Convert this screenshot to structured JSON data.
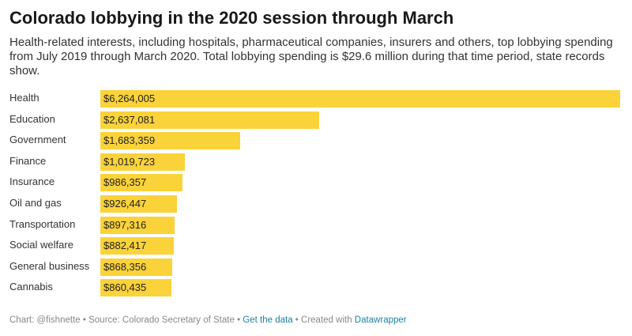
{
  "title": "Colorado lobbying in the 2020 session through March",
  "subtitle": "Health-related interests, including hospitals, pharmaceutical companies, insurers and others, top lobbying spending from July 2019 through March 2020. Total lobbying spending is $29.6 million during that time period, state records show.",
  "footer": {
    "credit": "Chart: @fishnette",
    "source": "Source: Colorado Secretary of State",
    "data_link": "Get the data",
    "created": "Created with",
    "tool_link": "Datawrapper",
    "separator": "•"
  },
  "colors": {
    "bar": "#fad23a",
    "link": "#1d81a2"
  },
  "chart_data": {
    "type": "bar",
    "orientation": "horizontal",
    "categories": [
      "Health",
      "Education",
      "Government",
      "Finance",
      "Insurance",
      "Oil and gas",
      "Transportation",
      "Social welfare",
      "General business",
      "Cannabis"
    ],
    "values": [
      6264005,
      2637081,
      1683359,
      1019723,
      986357,
      926447,
      897316,
      882417,
      868356,
      860435
    ],
    "labels": [
      "$6,264,005",
      "$2,637,081",
      "$1,683,359",
      "$1,019,723",
      "$986,357",
      "$926,447",
      "$897,316",
      "$882,417",
      "$868,356",
      "$860,435"
    ],
    "xlim": [
      0,
      6264005
    ],
    "legend": "none",
    "grid": false
  }
}
